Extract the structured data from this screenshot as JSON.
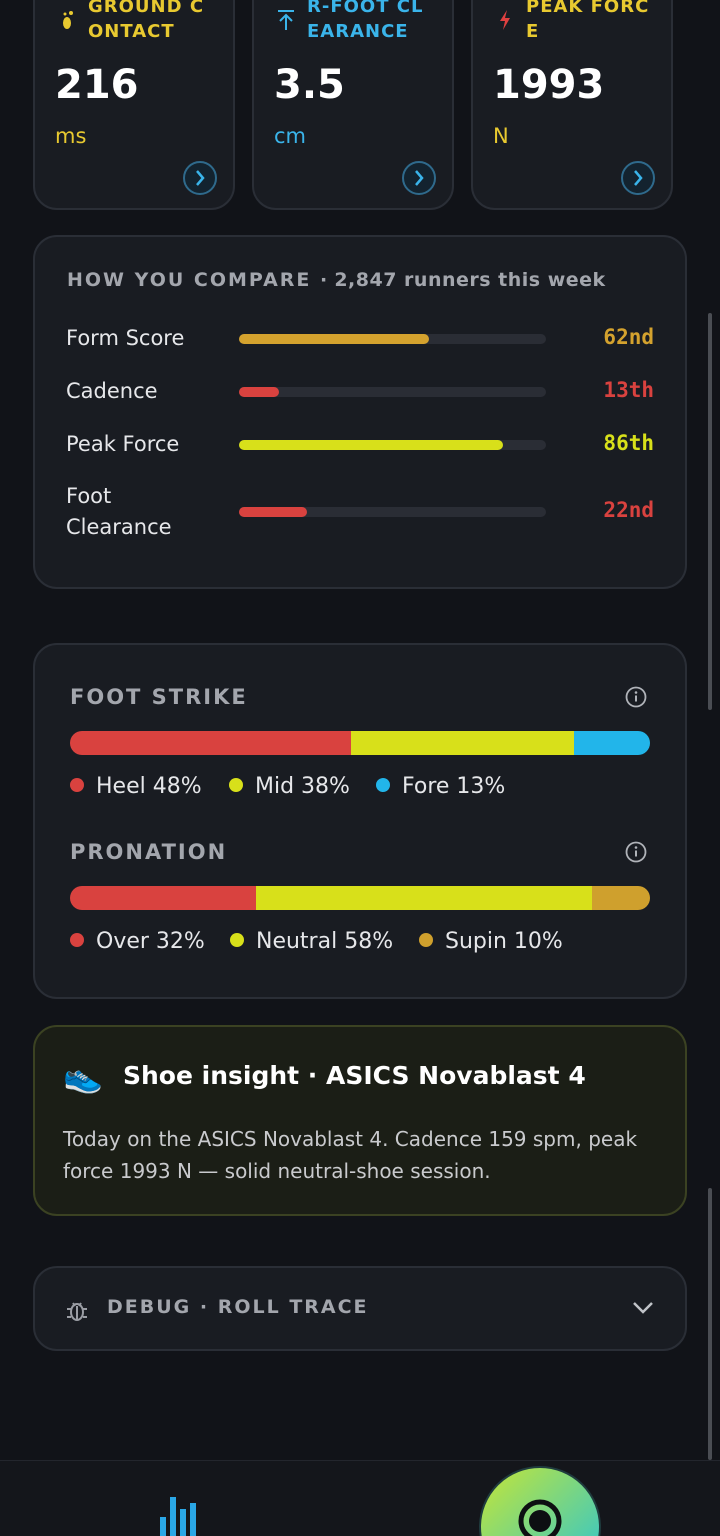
{
  "metric_cards": [
    {
      "title": "GROUND CONTACT",
      "value": "216",
      "unit": "ms",
      "color": "#e8c930"
    },
    {
      "title": "R-FOOT CLEARANCE",
      "value": "3.5",
      "unit": "cm",
      "color": "#3ab4ea"
    },
    {
      "title": "PEAK FORCE",
      "value": "1993",
      "unit": "N",
      "color": "#e8c930"
    }
  ],
  "compare": {
    "title": "HOW YOU COMPARE ·",
    "subtitle": "2,847 runners this week",
    "rows": [
      {
        "name": "Form Score",
        "value": 62,
        "label": "62nd",
        "color": "#d4a22e"
      },
      {
        "name": "Cadence",
        "value": 13,
        "label": "13th",
        "color": "#d9423f"
      },
      {
        "name": "Peak Force",
        "value": 86,
        "label": "86th",
        "color": "#d8e01a"
      },
      {
        "name": "Foot Clearance",
        "value": 22,
        "label": "22nd",
        "color": "#d9423f"
      }
    ]
  },
  "distributions": [
    {
      "title": "FOOT STRIKE",
      "segments": [
        {
          "label": "Heel 48%",
          "value": 48,
          "color": "#d9423f"
        },
        {
          "label": "Mid 38%",
          "value": 38,
          "color": "#d8e01a"
        },
        {
          "label": "Fore 13%",
          "value": 13,
          "color": "#22b5ea"
        }
      ]
    },
    {
      "title": "PRONATION",
      "segments": [
        {
          "label": "Over 32%",
          "value": 32,
          "color": "#d9423f"
        },
        {
          "label": "Neutral 58%",
          "value": 58,
          "color": "#d8e01a"
        },
        {
          "label": "Supin 10%",
          "value": 10,
          "color": "#cfa02d"
        }
      ]
    }
  ],
  "insight": {
    "icon": "👟",
    "title": "Shoe insight · ASICS Novablast 4",
    "body": "Today on the ASICS Novablast 4. Cadence 159 spm, peak force 1993 N — solid neutral-shoe session."
  },
  "debug": {
    "title": "DEBUG · ROLL TRACE"
  }
}
